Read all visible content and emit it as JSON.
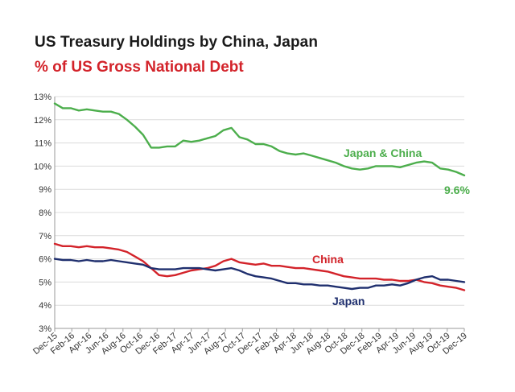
{
  "header": {
    "title": "US Treasury Holdings  by China, Japan",
    "subtitle": "% of US Gross National Debt"
  },
  "colors": {
    "japan_china": "#4cae4c",
    "china": "#d3232a",
    "japan": "#1f2f6e",
    "grid": "#dcdcdc",
    "axis": "#9a9a9a"
  },
  "chart_data": {
    "type": "line",
    "xlabel": "",
    "ylabel": "",
    "ylim": [
      3,
      13
    ],
    "y_ticks": [
      "3%",
      "4%",
      "5%",
      "6%",
      "7%",
      "8%",
      "9%",
      "10%",
      "11%",
      "12%",
      "13%"
    ],
    "x_ticks": [
      "Dec-15",
      "Feb-16",
      "Apr-16",
      "Jun-16",
      "Aug-16",
      "Oct-16",
      "Dec-16",
      "Feb-17",
      "Apr-17",
      "Jun-17",
      "Aug-17",
      "Oct-17",
      "Dec-17",
      "Feb-18",
      "Apr-18",
      "Jun-18",
      "Aug-18",
      "Oct-18",
      "Dec-18",
      "Feb-19",
      "Apr-19",
      "Jun-19",
      "Aug-19",
      "Oct-19",
      "Dec-19"
    ],
    "grid": true,
    "annotation": "9.6%",
    "series": [
      {
        "name": "Japan & China",
        "values": [
          12.7,
          12.5,
          12.5,
          12.4,
          12.45,
          12.4,
          12.35,
          12.35,
          12.25,
          12.0,
          11.7,
          11.35,
          10.8,
          10.8,
          10.85,
          10.85,
          11.1,
          11.05,
          11.1,
          11.2,
          11.3,
          11.55,
          11.65,
          11.25,
          11.15,
          10.95,
          10.95,
          10.85,
          10.65,
          10.55,
          10.5,
          10.55,
          10.45,
          10.35,
          10.25,
          10.15,
          10.0,
          9.9,
          9.85,
          9.9,
          10.0,
          10.0,
          10.0,
          9.95,
          10.05,
          10.15,
          10.2,
          10.15,
          9.9,
          9.85,
          9.75,
          9.6
        ]
      },
      {
        "name": "China",
        "values": [
          6.65,
          6.55,
          6.55,
          6.5,
          6.55,
          6.5,
          6.5,
          6.45,
          6.4,
          6.3,
          6.1,
          5.9,
          5.6,
          5.3,
          5.25,
          5.3,
          5.4,
          5.5,
          5.55,
          5.6,
          5.7,
          5.9,
          6.0,
          5.85,
          5.8,
          5.75,
          5.8,
          5.7,
          5.7,
          5.65,
          5.6,
          5.6,
          5.55,
          5.5,
          5.45,
          5.35,
          5.25,
          5.2,
          5.15,
          5.15,
          5.15,
          5.1,
          5.1,
          5.05,
          5.05,
          5.1,
          5.0,
          4.95,
          4.85,
          4.8,
          4.75,
          4.65
        ]
      },
      {
        "name": "Japan",
        "values": [
          6.0,
          5.95,
          5.95,
          5.9,
          5.95,
          5.9,
          5.9,
          5.95,
          5.9,
          5.85,
          5.8,
          5.75,
          5.6,
          5.55,
          5.55,
          5.55,
          5.6,
          5.6,
          5.6,
          5.55,
          5.5,
          5.55,
          5.6,
          5.5,
          5.35,
          5.25,
          5.2,
          5.15,
          5.05,
          4.95,
          4.95,
          4.9,
          4.9,
          4.85,
          4.85,
          4.8,
          4.75,
          4.7,
          4.75,
          4.75,
          4.85,
          4.85,
          4.9,
          4.85,
          4.95,
          5.1,
          5.2,
          5.25,
          5.1,
          5.1,
          5.05,
          5.0
        ]
      }
    ]
  }
}
